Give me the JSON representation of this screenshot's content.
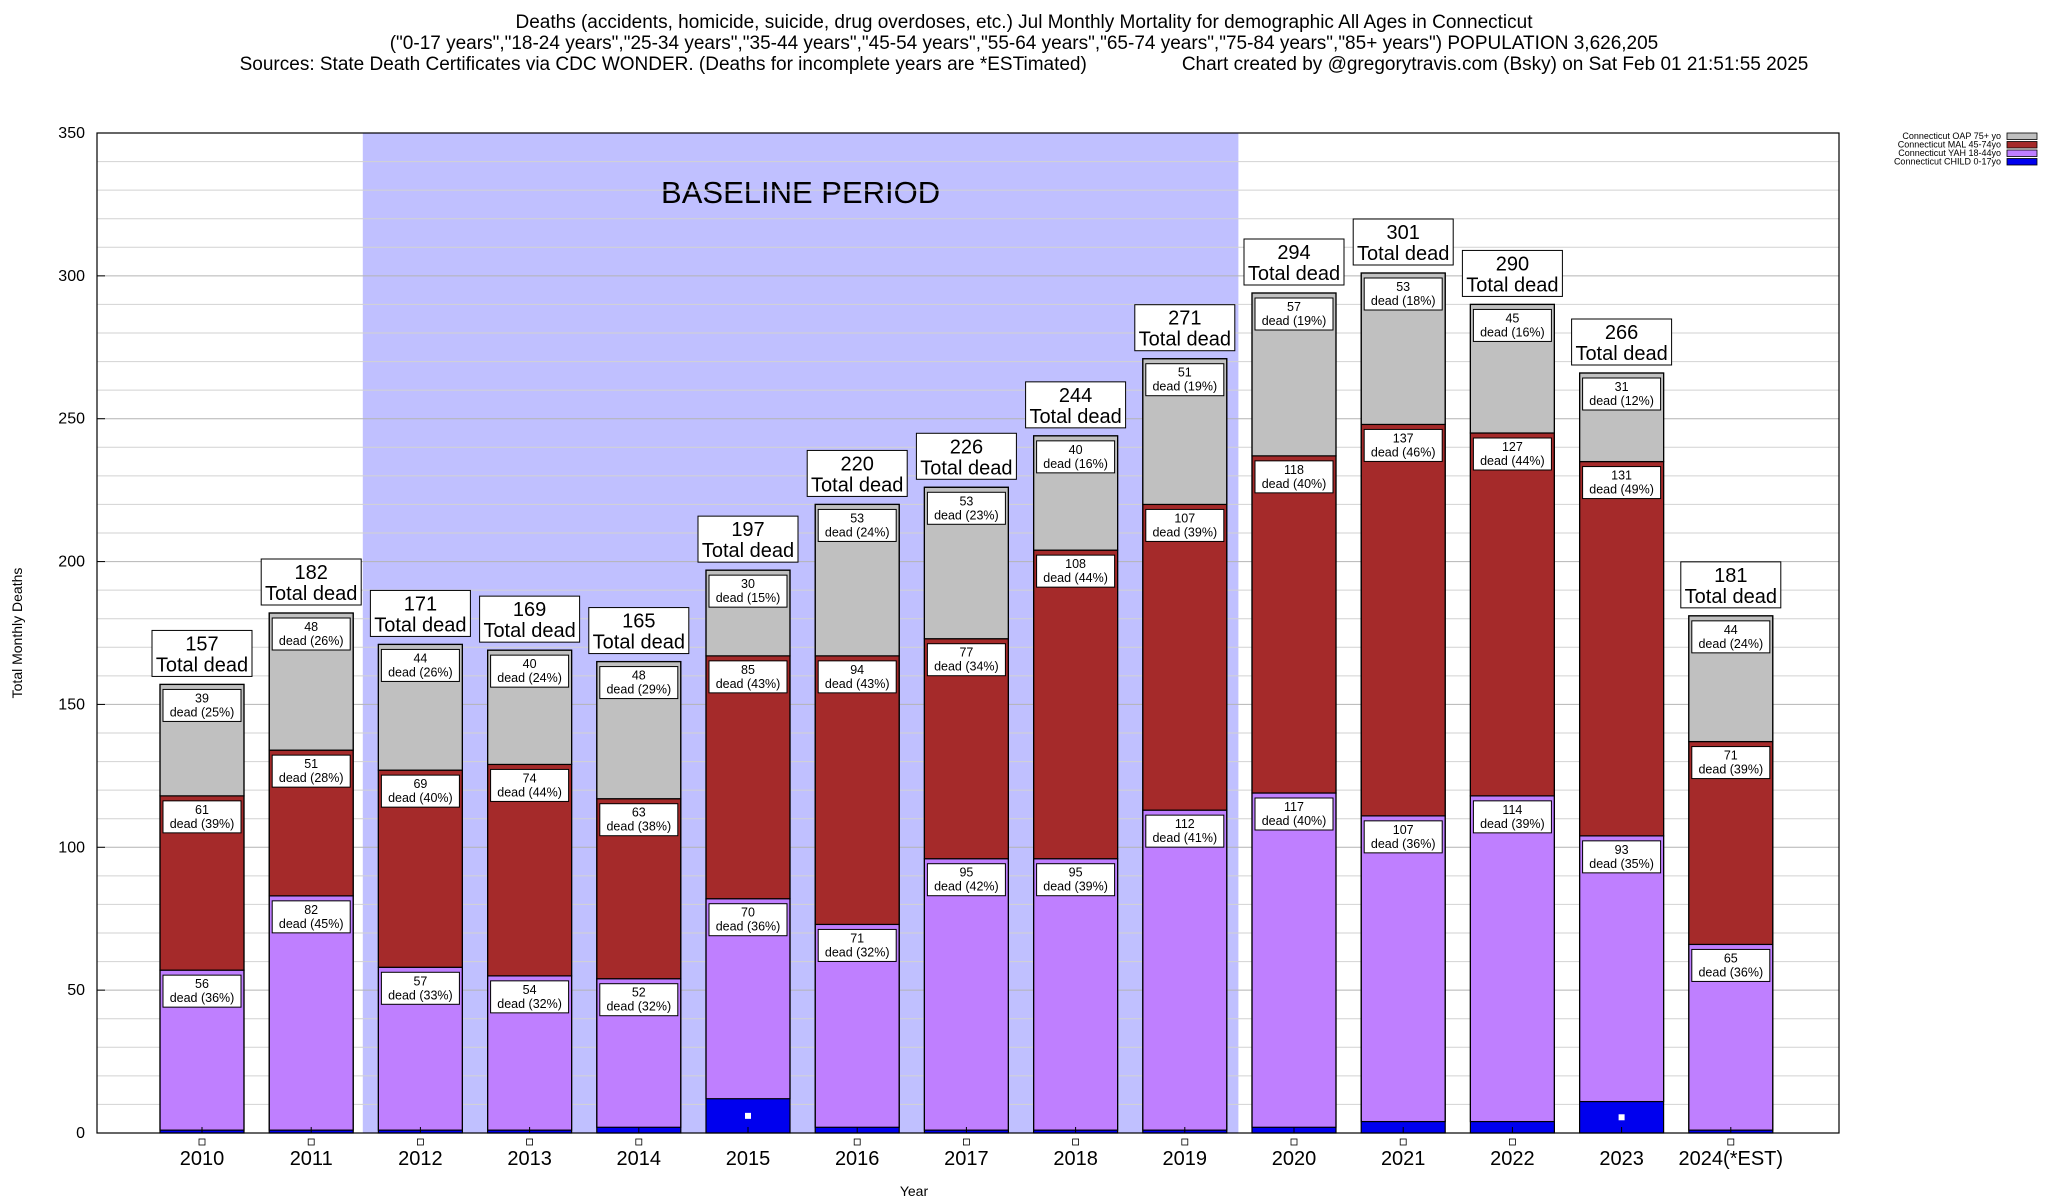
{
  "header": {
    "title_line1": "Deaths (accidents, homicide, suicide, drug overdoses, etc.) Jul Monthly Mortality for demographic All Ages in Connecticut",
    "title_line2": "(\"0-17 years\",\"18-24 years\",\"25-34 years\",\"35-44 years\",\"45-54 years\",\"55-64 years\",\"65-74 years\",\"75-84 years\",\"85+ years\") POPULATION 3,626,205",
    "sources": "Sources: State Death Certificates via CDC WONDER. (Deaths for incomplete years are *ESTimated)",
    "credit": "Chart created by @gregorytravis.com (Bsky) on Sat Feb 01 21:51:55 2025"
  },
  "chart_data": {
    "type": "bar",
    "stacked": true,
    "xlabel": "Year",
    "ylabel": "Total Monthly Deaths",
    "ylim": [
      0,
      350
    ],
    "yticks": [
      0,
      50,
      100,
      150,
      200,
      250,
      300,
      350
    ],
    "grid": true,
    "legend_position": "top-right",
    "annotation": "BASELINE PERIOD",
    "baseline_range": [
      "2012",
      "2019"
    ],
    "total_suffix": "Total dead",
    "segment_suffix": "dead",
    "categories": [
      "2010",
      "2011",
      "2012",
      "2013",
      "2014",
      "2015",
      "2016",
      "2017",
      "2018",
      "2019",
      "2020",
      "2021",
      "2022",
      "2023",
      "2024(*EST)"
    ],
    "totals": [
      157,
      182,
      171,
      169,
      165,
      197,
      220,
      226,
      244,
      271,
      294,
      301,
      290,
      266,
      181
    ],
    "series": [
      {
        "name": "Connecticut CHILD 0-17yo",
        "color": "#0000ee",
        "values": [
          1,
          1,
          1,
          1,
          2,
          12,
          2,
          1,
          1,
          1,
          2,
          4,
          4,
          11,
          1
        ]
      },
      {
        "name": "Connecticut YAH 18-44yo",
        "color": "#bf7fff",
        "values": [
          56,
          82,
          57,
          54,
          52,
          70,
          71,
          95,
          95,
          112,
          117,
          107,
          114,
          93,
          65
        ],
        "percents": [
          "36%",
          "45%",
          "33%",
          "32%",
          "32%",
          "36%",
          "32%",
          "42%",
          "39%",
          "41%",
          "40%",
          "36%",
          "39%",
          "35%",
          "36%"
        ]
      },
      {
        "name": "Connecticut MAL 45-74yo",
        "color": "#a52a2a",
        "values": [
          61,
          51,
          69,
          74,
          63,
          85,
          94,
          77,
          108,
          107,
          118,
          137,
          127,
          131,
          71
        ],
        "percents": [
          "39%",
          "28%",
          "40%",
          "44%",
          "38%",
          "43%",
          "43%",
          "34%",
          "44%",
          "39%",
          "40%",
          "46%",
          "44%",
          "49%",
          "39%"
        ]
      },
      {
        "name": "Connecticut OAP 75+ yo",
        "color": "#c0c0c0",
        "values": [
          39,
          48,
          44,
          40,
          48,
          30,
          53,
          53,
          40,
          51,
          57,
          53,
          45,
          31,
          44
        ],
        "percents": [
          "25%",
          "26%",
          "26%",
          "24%",
          "29%",
          "15%",
          "24%",
          "23%",
          "16%",
          "19%",
          "19%",
          "18%",
          "16%",
          "12%",
          "24%"
        ]
      }
    ]
  }
}
